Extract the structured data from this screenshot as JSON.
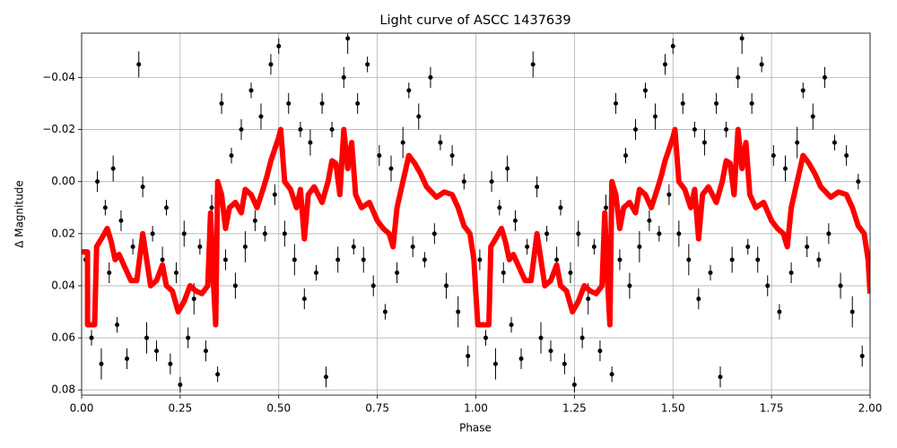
{
  "chart_data": {
    "type": "scatter",
    "title": "Light curve of ASCC 1437639",
    "x_label": "Phase",
    "y_label": "Δ Magnitude",
    "xlim": [
      0,
      2
    ],
    "ylim": [
      0.082,
      -0.057
    ],
    "xticks": [
      {
        "value": 0,
        "label": "0.00"
      },
      0.25,
      {
        "value": 0.5,
        "label": "0.50"
      },
      0.75,
      {
        "value": 1,
        "label": "1.00"
      },
      1.25,
      {
        "value": 1.5,
        "label": "1.50"
      },
      1.75,
      {
        "value": 2,
        "label": "2.00"
      }
    ],
    "yticks": [
      {
        "value": -0.04,
        "label": "−0.04"
      },
      {
        "value": -0.02,
        "label": "−0.02"
      },
      {
        "value": 0,
        "label": "0.00"
      },
      0.02,
      0.04,
      0.06,
      0.08
    ],
    "grid": true,
    "series": [
      {
        "type": "errorbar",
        "color": "#000000",
        "x": [
          0.01,
          0.025,
          0.035,
          0.04,
          0.05,
          0.06,
          0.07,
          0.08,
          0.09,
          0.1,
          0.115,
          0.13,
          0.145,
          0.155,
          0.165,
          0.18,
          0.19,
          0.205,
          0.215,
          0.225,
          0.24,
          0.25,
          0.26,
          0.27,
          0.285,
          0.3,
          0.315,
          0.33,
          0.345,
          0.355,
          0.365,
          0.38,
          0.39,
          0.405,
          0.415,
          0.43,
          0.44,
          0.455,
          0.465,
          0.48,
          0.49,
          0.5,
          0.515,
          0.525,
          0.54,
          0.555,
          0.565,
          0.58,
          0.595,
          0.61,
          0.62,
          0.635,
          0.65,
          0.665,
          0.675,
          0.69,
          0.7,
          0.715,
          0.725,
          0.74,
          0.755,
          0.77,
          0.785,
          0.8,
          0.815,
          0.83,
          0.84,
          0.855,
          0.87,
          0.885,
          0.895,
          0.91,
          0.925,
          0.94,
          0.955,
          0.97,
          0.98,
          0.99,
          1.01,
          1.025,
          1.035,
          1.04,
          1.05,
          1.06,
          1.07,
          1.08,
          1.09,
          1.1,
          1.115,
          1.13,
          1.145,
          1.155,
          1.165,
          1.18,
          1.19,
          1.205,
          1.215,
          1.225,
          1.24,
          1.25,
          1.26,
          1.27,
          1.285,
          1.3,
          1.315,
          1.33,
          1.345,
          1.355,
          1.365,
          1.38,
          1.39,
          1.405,
          1.415,
          1.43,
          1.44,
          1.455,
          1.465,
          1.48,
          1.49,
          1.5,
          1.515,
          1.525,
          1.54,
          1.555,
          1.565,
          1.58,
          1.595,
          1.61,
          1.62,
          1.635,
          1.65,
          1.665,
          1.675,
          1.69,
          1.7,
          1.715,
          1.725,
          1.74,
          1.755,
          1.77,
          1.785,
          1.8,
          1.815,
          1.83,
          1.84,
          1.855,
          1.87,
          1.885,
          1.895,
          1.91,
          1.925,
          1.94,
          1.955,
          1.97,
          1.98,
          1.99
        ],
        "values": [
          0.03,
          0.06,
          0.045,
          0.0,
          0.07,
          0.01,
          0.035,
          -0.005,
          0.055,
          0.015,
          0.068,
          0.025,
          -0.045,
          0.002,
          0.06,
          0.02,
          0.065,
          0.03,
          0.01,
          0.07,
          0.035,
          0.078,
          0.02,
          0.06,
          0.045,
          0.025,
          0.065,
          0.01,
          0.074,
          -0.03,
          0.03,
          -0.01,
          0.04,
          -0.02,
          0.025,
          -0.035,
          0.015,
          -0.025,
          0.02,
          -0.045,
          0.005,
          -0.052,
          0.02,
          -0.03,
          0.03,
          -0.02,
          0.045,
          -0.015,
          0.035,
          -0.03,
          0.075,
          -0.02,
          0.03,
          -0.04,
          -0.055,
          0.025,
          -0.03,
          0.03,
          -0.045,
          0.04,
          -0.01,
          0.05,
          -0.005,
          0.035,
          -0.015,
          -0.035,
          0.025,
          -0.025,
          0.03,
          -0.04,
          0.02,
          -0.015,
          0.04,
          -0.01,
          0.05,
          0.0,
          0.067,
          0.025,
          0.03,
          0.06,
          0.045,
          0.0,
          0.07,
          0.01,
          0.035,
          -0.005,
          0.055,
          0.015,
          0.068,
          0.025,
          -0.045,
          0.002,
          0.06,
          0.02,
          0.065,
          0.03,
          0.01,
          0.07,
          0.035,
          0.078,
          0.02,
          0.06,
          0.045,
          0.025,
          0.065,
          0.01,
          0.074,
          -0.03,
          0.03,
          -0.01,
          0.04,
          -0.02,
          0.025,
          -0.035,
          0.015,
          -0.025,
          0.02,
          -0.045,
          0.005,
          -0.052,
          0.02,
          -0.03,
          0.03,
          -0.02,
          0.045,
          -0.015,
          0.035,
          -0.03,
          0.075,
          -0.02,
          0.03,
          -0.04,
          -0.055,
          0.025,
          -0.03,
          0.03,
          -0.045,
          0.04,
          -0.01,
          0.05,
          -0.005,
          0.035,
          -0.015,
          -0.035,
          0.025,
          -0.025,
          0.03,
          -0.04,
          0.02,
          -0.015,
          0.04,
          -0.01,
          0.05,
          0.0,
          0.067,
          0.025
        ],
        "errors": [
          0.004,
          0.003,
          0.005,
          0.004,
          0.006,
          0.003,
          0.004,
          0.005,
          0.003,
          0.004,
          0.004,
          0.003,
          0.005,
          0.004,
          0.006,
          0.003,
          0.004,
          0.005,
          0.003,
          0.004,
          0.004,
          0.003,
          0.005,
          0.004,
          0.006,
          0.003,
          0.004,
          0.005,
          0.003,
          0.004,
          0.004,
          0.003,
          0.005,
          0.004,
          0.006,
          0.003,
          0.004,
          0.005,
          0.003,
          0.004,
          0.004,
          0.003,
          0.005,
          0.004,
          0.006,
          0.003,
          0.004,
          0.005,
          0.003,
          0.004,
          0.004,
          0.003,
          0.005,
          0.004,
          0.006,
          0.003,
          0.004,
          0.005,
          0.003,
          0.004,
          0.004,
          0.003,
          0.005,
          0.004,
          0.006,
          0.003,
          0.004,
          0.005,
          0.003,
          0.004,
          0.004,
          0.003,
          0.005,
          0.004,
          0.006,
          0.003,
          0.004,
          0.005,
          0.004,
          0.003,
          0.005,
          0.004,
          0.006,
          0.003,
          0.004,
          0.005,
          0.003,
          0.004,
          0.004,
          0.003,
          0.005,
          0.004,
          0.006,
          0.003,
          0.004,
          0.005,
          0.003,
          0.004,
          0.004,
          0.003,
          0.005,
          0.004,
          0.006,
          0.003,
          0.004,
          0.005,
          0.003,
          0.004,
          0.004,
          0.003,
          0.005,
          0.004,
          0.006,
          0.003,
          0.004,
          0.005,
          0.003,
          0.004,
          0.004,
          0.003,
          0.005,
          0.004,
          0.006,
          0.003,
          0.004,
          0.005,
          0.003,
          0.004,
          0.004,
          0.003,
          0.005,
          0.004,
          0.006,
          0.003,
          0.004,
          0.005,
          0.003,
          0.004,
          0.004,
          0.003,
          0.005,
          0.004,
          0.006,
          0.003,
          0.004,
          0.005,
          0.003,
          0.004,
          0.004,
          0.003,
          0.005,
          0.004,
          0.006,
          0.003,
          0.004,
          0.005
        ]
      },
      {
        "type": "line",
        "color": "#ff0000",
        "x": [
          0,
          0.015,
          0.015,
          0.033,
          0.038,
          0.05,
          0.065,
          0.075,
          0.085,
          0.095,
          0.11,
          0.125,
          0.14,
          0.155,
          0.165,
          0.175,
          0.19,
          0.205,
          0.215,
          0.23,
          0.245,
          0.26,
          0.275,
          0.29,
          0.305,
          0.32,
          0.327,
          0.333,
          0.34,
          0.345,
          0.355,
          0.365,
          0.375,
          0.39,
          0.405,
          0.415,
          0.43,
          0.445,
          0.46,
          0.47,
          0.48,
          0.5,
          0.505,
          0.515,
          0.53,
          0.545,
          0.555,
          0.565,
          0.575,
          0.59,
          0.61,
          0.625,
          0.635,
          0.645,
          0.655,
          0.665,
          0.675,
          0.685,
          0.695,
          0.71,
          0.73,
          0.75,
          0.765,
          0.78,
          0.79,
          0.8,
          0.815,
          0.83,
          0.845,
          0.86,
          0.875,
          0.9,
          0.92,
          0.94,
          0.955,
          0.97,
          0.985,
          0.995,
          1.0,
          1.005,
          1.033,
          1.038,
          1.05,
          1.065,
          1.075,
          1.085,
          1.095,
          1.11,
          1.125,
          1.14,
          1.155,
          1.165,
          1.175,
          1.19,
          1.205,
          1.215,
          1.23,
          1.245,
          1.26,
          1.275,
          1.29,
          1.305,
          1.32,
          1.327,
          1.333,
          1.34,
          1.345,
          1.355,
          1.365,
          1.375,
          1.39,
          1.405,
          1.415,
          1.43,
          1.445,
          1.46,
          1.47,
          1.48,
          1.5,
          1.505,
          1.515,
          1.53,
          1.545,
          1.555,
          1.565,
          1.575,
          1.59,
          1.61,
          1.625,
          1.635,
          1.645,
          1.655,
          1.665,
          1.675,
          1.685,
          1.695,
          1.71,
          1.73,
          1.75,
          1.765,
          1.78,
          1.79,
          1.8,
          1.815,
          1.83,
          1.845,
          1.86,
          1.875,
          1.9,
          1.92,
          1.94,
          1.955,
          1.97,
          1.985,
          1.995,
          2.0
        ],
        "values": [
          0.027,
          0.027,
          0.055,
          0.055,
          0.025,
          0.022,
          0.018,
          0.023,
          0.03,
          0.028,
          0.033,
          0.038,
          0.038,
          0.02,
          0.03,
          0.04,
          0.038,
          0.032,
          0.04,
          0.042,
          0.05,
          0.046,
          0.04,
          0.042,
          0.043,
          0.04,
          0.012,
          0.035,
          0.055,
          0.0,
          0.005,
          0.018,
          0.01,
          0.008,
          0.012,
          0.003,
          0.005,
          0.01,
          0.003,
          -0.002,
          -0.008,
          -0.017,
          -0.02,
          0.0,
          0.003,
          0.01,
          0.003,
          0.022,
          0.005,
          0.002,
          0.008,
          0.0,
          -0.008,
          -0.007,
          0.005,
          -0.02,
          -0.005,
          -0.015,
          0.005,
          0.01,
          0.008,
          0.015,
          0.018,
          0.02,
          0.025,
          0.01,
          0.0,
          -0.01,
          -0.007,
          -0.003,
          0.002,
          0.006,
          0.004,
          0.005,
          0.01,
          0.017,
          0.02,
          0.03,
          0.043,
          0.055,
          0.055,
          0.025,
          0.022,
          0.018,
          0.023,
          0.03,
          0.028,
          0.033,
          0.038,
          0.038,
          0.02,
          0.03,
          0.04,
          0.038,
          0.032,
          0.04,
          0.042,
          0.05,
          0.046,
          0.04,
          0.042,
          0.043,
          0.04,
          0.012,
          0.035,
          0.055,
          0.0,
          0.005,
          0.018,
          0.01,
          0.008,
          0.012,
          0.003,
          0.005,
          0.01,
          0.003,
          -0.002,
          -0.008,
          -0.017,
          -0.02,
          0.0,
          0.003,
          0.01,
          0.003,
          0.022,
          0.005,
          0.002,
          0.008,
          0.0,
          -0.008,
          -0.007,
          0.005,
          -0.02,
          -0.005,
          -0.015,
          0.005,
          0.01,
          0.008,
          0.015,
          0.018,
          0.02,
          0.025,
          0.01,
          0.0,
          -0.01,
          -0.007,
          -0.003,
          0.002,
          0.006,
          0.004,
          0.005,
          0.01,
          0.017,
          0.02,
          0.03,
          0.043
        ]
      }
    ]
  }
}
